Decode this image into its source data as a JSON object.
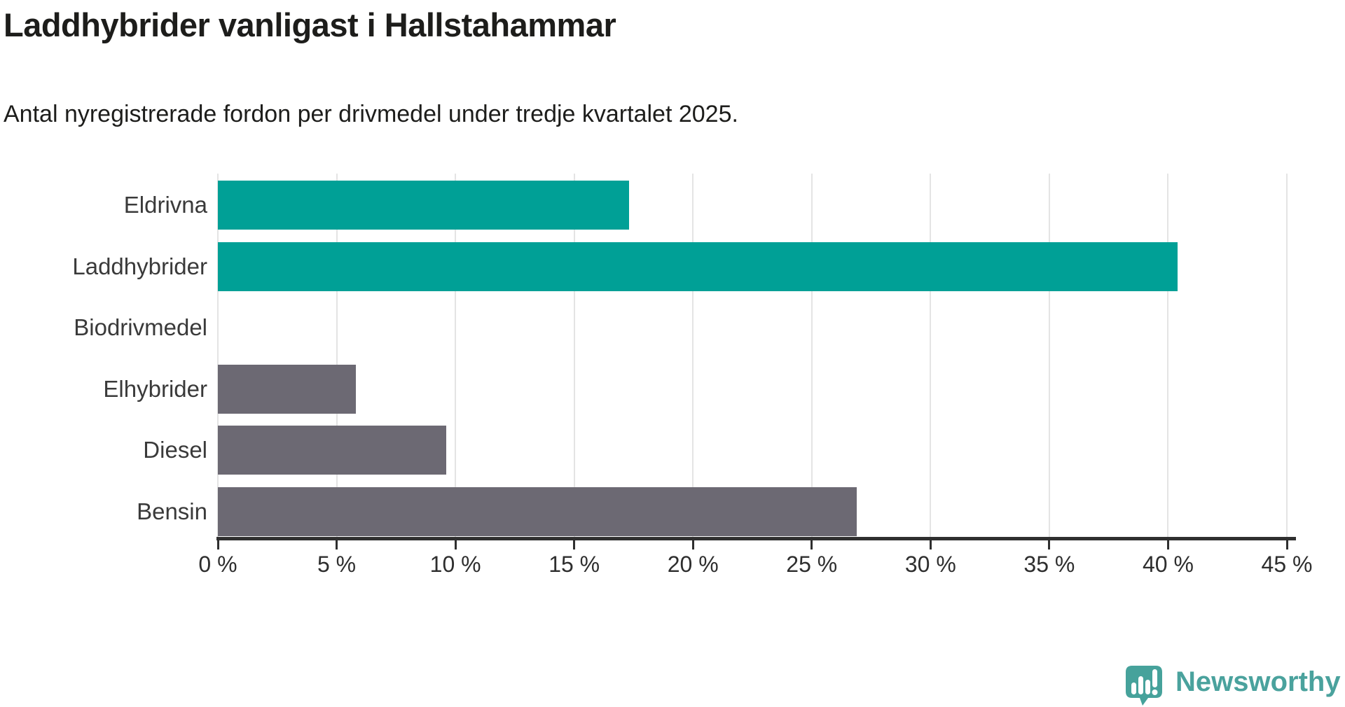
{
  "header": {
    "title": "Laddhybrider vanligast i Hallstahammar",
    "subtitle": "Antal nyregistrerade fordon per drivmedel under tredje kvartalet 2025."
  },
  "chart_data": {
    "type": "bar",
    "orientation": "horizontal",
    "title": "Laddhybrider vanligast i Hallstahammar",
    "subtitle": "Antal nyregistrerade fordon per drivmedel under tredje kvartalet 2025.",
    "categories": [
      "Eldrivna",
      "Laddhybrider",
      "Biodrivmedel",
      "Elhybrider",
      "Diesel",
      "Bensin"
    ],
    "values": [
      17.3,
      40.4,
      0,
      5.8,
      9.6,
      26.9
    ],
    "unit": "%",
    "xlabel": "",
    "ylabel": "",
    "xlim": [
      0,
      45
    ],
    "x_ticks": [
      0,
      5,
      10,
      15,
      20,
      25,
      30,
      35,
      40,
      45
    ],
    "x_tick_labels": [
      "0 %",
      "5 %",
      "10 %",
      "15 %",
      "20 %",
      "25 %",
      "30 %",
      "35 %",
      "40 %",
      "45 %"
    ],
    "grid": "vertical",
    "legend": "none",
    "bar_colors": [
      "#00a096",
      "#00a096",
      "#6c6973",
      "#6c6973",
      "#6c6973",
      "#6c6973"
    ]
  },
  "colors": {
    "highlight_teal": "#00a096",
    "neutral_gray": "#6c6973",
    "gridline": "#e4e4e4",
    "axis": "#2f2f2f",
    "text": "#1d1d1b",
    "brand_teal": "#46a29b"
  },
  "footer": {
    "brand_name": "Newsworthy"
  }
}
